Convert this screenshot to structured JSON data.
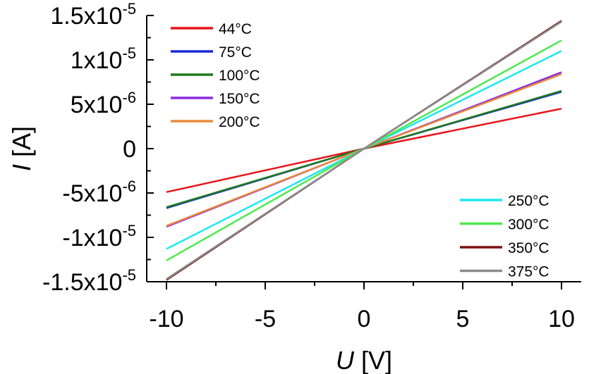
{
  "chart_data": {
    "type": "line",
    "title": "",
    "xlabel_var": "U",
    "xlabel_unit": " [V]",
    "ylabel_var": "I",
    "ylabel_unit": " [A]",
    "xlim": [
      -11,
      11
    ],
    "ylim": [
      -1.5e-05,
      1.5e-05
    ],
    "xticks": [
      {
        "value": -10,
        "label": "-10"
      },
      {
        "value": -5,
        "label": "-5"
      },
      {
        "value": 0,
        "label": "0"
      },
      {
        "value": 5,
        "label": "5"
      },
      {
        "value": 10,
        "label": "10"
      }
    ],
    "yticks": [
      {
        "value": 1.5e-05,
        "mantissa": "1.5x10",
        "exp": "-5"
      },
      {
        "value": 1e-05,
        "mantissa": "1x10",
        "exp": "-5"
      },
      {
        "value": 5e-06,
        "mantissa": "5x10",
        "exp": "-6"
      },
      {
        "value": 0,
        "mantissa": "0",
        "exp": ""
      },
      {
        "value": -5e-06,
        "mantissa": "-5x10",
        "exp": "-6"
      },
      {
        "value": -1e-05,
        "mantissa": "-1x10",
        "exp": "-5"
      },
      {
        "value": -1.5e-05,
        "mantissa": "-1.5x10",
        "exp": "-5"
      }
    ],
    "legend_groups": [
      {
        "placement": "top-left",
        "series": [
          "44°C",
          "75°C",
          "100°C",
          "150°C",
          "200°C"
        ]
      },
      {
        "placement": "bottom-right",
        "series": [
          "250°C",
          "300°C",
          "350°C",
          "375°C"
        ]
      }
    ],
    "series": [
      {
        "name": "44°C",
        "color": "#e8141a",
        "x": [
          -10,
          0,
          10
        ],
        "y": [
          -4.9e-06,
          0,
          4.5e-06
        ]
      },
      {
        "name": "75°C",
        "color": "#1a2ad6",
        "x": [
          -10,
          0,
          10
        ],
        "y": [
          -6.7e-06,
          0,
          6.4e-06
        ]
      },
      {
        "name": "100°C",
        "color": "#1e7a1e",
        "x": [
          -10,
          0,
          10
        ],
        "y": [
          -6.6e-06,
          0,
          6.5e-06
        ]
      },
      {
        "name": "150°C",
        "color": "#8a2be2",
        "x": [
          -10,
          0,
          10
        ],
        "y": [
          -8.8e-06,
          0,
          8.6e-06
        ]
      },
      {
        "name": "200°C",
        "color": "#e88a3c",
        "x": [
          -10,
          0,
          10
        ],
        "y": [
          -8.7e-06,
          0,
          8.4e-06
        ]
      },
      {
        "name": "250°C",
        "color": "#1ee6f0",
        "x": [
          -10,
          0,
          10
        ],
        "y": [
          -1.13e-05,
          0,
          1.1e-05
        ]
      },
      {
        "name": "300°C",
        "color": "#4ee84e",
        "x": [
          -10,
          0,
          10
        ],
        "y": [
          -1.26e-05,
          0,
          1.22e-05
        ]
      },
      {
        "name": "350°C",
        "color": "#7a1212",
        "x": [
          -10,
          0,
          10
        ],
        "y": [
          -1.48e-05,
          0,
          1.44e-05
        ]
      },
      {
        "name": "375°C",
        "color": "#8a8a8a",
        "x": [
          -10,
          0,
          10
        ],
        "y": [
          -1.47e-05,
          0,
          1.43e-05
        ]
      }
    ]
  }
}
